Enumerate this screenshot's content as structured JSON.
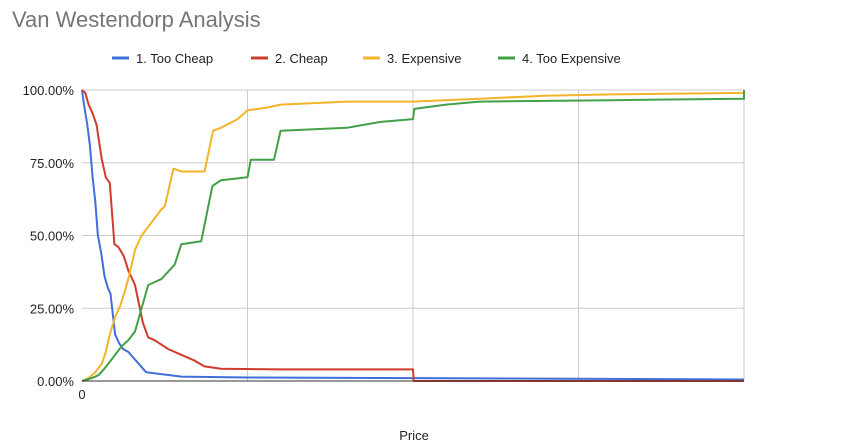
{
  "chart_data": {
    "type": "line",
    "title": "Van Westendorp Analysis",
    "xlabel": "Price",
    "ylabel": "",
    "x_tick_labels": [
      "0"
    ],
    "y_tick_labels": [
      "0.00%",
      "25.00%",
      "50.00%",
      "75.00%",
      "100.00%"
    ],
    "xlim": [
      0,
      100
    ],
    "ylim": [
      0,
      100
    ],
    "grid": true,
    "legend_position": "top",
    "series": [
      {
        "name": "1. Too Cheap",
        "color": "#3f6fd8",
        "points": [
          [
            0,
            100
          ],
          [
            0.3,
            95
          ],
          [
            0.8,
            88
          ],
          [
            1.2,
            81
          ],
          [
            1.6,
            70
          ],
          [
            2.0,
            62
          ],
          [
            2.4,
            50
          ],
          [
            2.9,
            44
          ],
          [
            3.4,
            36
          ],
          [
            3.9,
            32
          ],
          [
            4.3,
            30
          ],
          [
            5.0,
            16
          ],
          [
            5.6,
            13
          ],
          [
            6.2,
            11
          ],
          [
            7.0,
            10
          ],
          [
            9.7,
            3
          ],
          [
            15,
            1.5
          ],
          [
            25,
            1.2
          ],
          [
            50,
            1.0
          ],
          [
            100,
            0.5
          ]
        ]
      },
      {
        "name": "2. Cheap",
        "color": "#d03b2c",
        "points": [
          [
            0,
            100
          ],
          [
            0.5,
            99
          ],
          [
            1.0,
            95
          ],
          [
            1.6,
            92
          ],
          [
            2.2,
            88
          ],
          [
            2.6,
            82
          ],
          [
            3.0,
            76
          ],
          [
            3.6,
            70
          ],
          [
            4.2,
            68
          ],
          [
            4.9,
            47
          ],
          [
            5.5,
            46
          ],
          [
            6.3,
            43
          ],
          [
            7.0,
            38
          ],
          [
            8.0,
            33
          ],
          [
            9.2,
            20
          ],
          [
            10,
            15
          ],
          [
            11,
            14
          ],
          [
            13,
            11
          ],
          [
            15,
            9
          ],
          [
            17,
            7
          ],
          [
            18.5,
            5
          ],
          [
            21,
            4.2
          ],
          [
            30,
            4
          ],
          [
            50,
            4
          ],
          [
            50.1,
            0
          ],
          [
            100,
            0
          ]
        ]
      },
      {
        "name": "3. Expensive",
        "color": "#f3b42a",
        "points": [
          [
            0,
            0
          ],
          [
            1.0,
            1
          ],
          [
            2.0,
            3
          ],
          [
            3.0,
            6
          ],
          [
            3.6,
            10
          ],
          [
            4.2,
            16
          ],
          [
            5.0,
            22
          ],
          [
            5.8,
            26
          ],
          [
            6.5,
            31
          ],
          [
            7.2,
            37
          ],
          [
            8.0,
            45
          ],
          [
            9.0,
            50
          ],
          [
            10,
            53
          ],
          [
            11,
            56
          ],
          [
            12,
            59
          ],
          [
            12.5,
            60
          ],
          [
            13.8,
            73
          ],
          [
            15,
            72
          ],
          [
            18.5,
            72
          ],
          [
            19.8,
            86
          ],
          [
            21,
            87
          ],
          [
            23.5,
            90
          ],
          [
            25,
            93
          ],
          [
            28,
            94
          ],
          [
            30,
            95
          ],
          [
            40,
            96
          ],
          [
            50,
            96
          ],
          [
            60,
            97
          ],
          [
            70,
            98
          ],
          [
            80,
            98.5
          ],
          [
            100,
            99
          ]
        ]
      },
      {
        "name": "4. Too Expensive",
        "color": "#43a047",
        "points": [
          [
            0,
            0
          ],
          [
            1.5,
            1
          ],
          [
            2.5,
            2
          ],
          [
            3.3,
            4
          ],
          [
            4.0,
            6
          ],
          [
            5.0,
            9
          ],
          [
            6.0,
            12
          ],
          [
            7.0,
            14
          ],
          [
            8.0,
            17
          ],
          [
            10,
            33
          ],
          [
            12,
            35
          ],
          [
            14,
            40
          ],
          [
            15,
            47
          ],
          [
            18,
            48
          ],
          [
            19.7,
            67
          ],
          [
            21,
            69
          ],
          [
            25,
            70
          ],
          [
            25.5,
            76
          ],
          [
            29,
            76
          ],
          [
            30,
            86
          ],
          [
            40,
            87
          ],
          [
            45,
            89
          ],
          [
            50,
            90
          ],
          [
            50.2,
            93.5
          ],
          [
            55,
            95
          ],
          [
            60,
            96
          ],
          [
            80,
            96.5
          ],
          [
            100,
            97
          ],
          [
            100,
            100
          ]
        ]
      }
    ]
  }
}
